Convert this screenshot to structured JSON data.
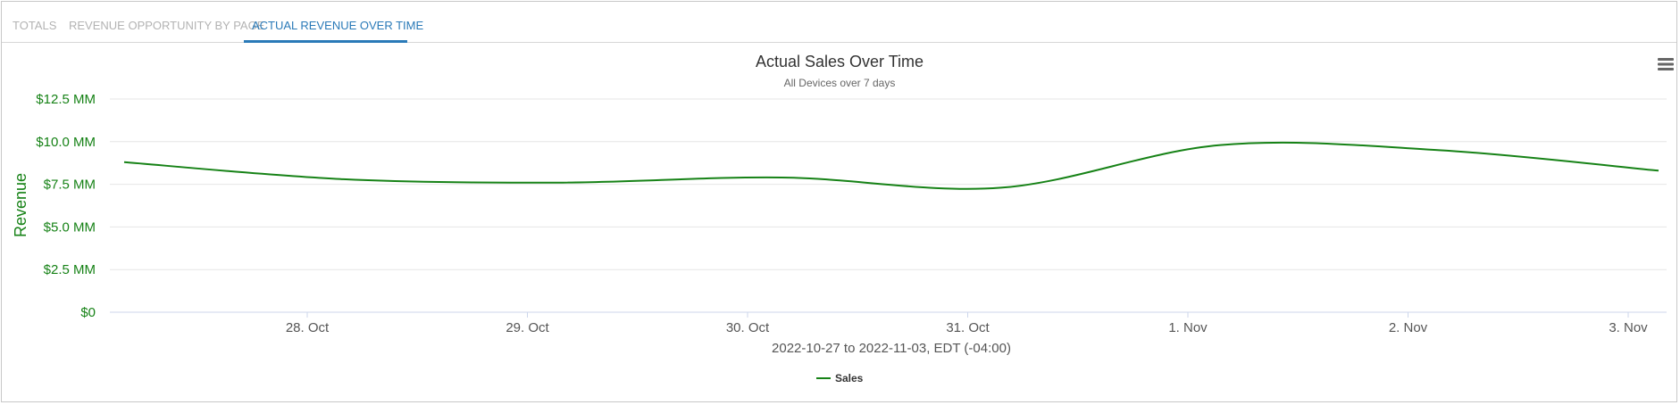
{
  "tabs": [
    {
      "label": "TOTALS",
      "active": false
    },
    {
      "label": "REVENUE OPPORTUNITY BY PAGE",
      "active": false
    },
    {
      "label": "ACTUAL REVENUE OVER TIME",
      "active": true
    }
  ],
  "menu_icon": "hamburger-menu-icon",
  "colors": {
    "series": "#168216",
    "axis_text": "#168216",
    "tab_active": "#2a7ab8",
    "tab_inactive": "#b3b3b3",
    "grid": "#e6e6e6"
  },
  "chart_data": {
    "type": "line",
    "title": "Actual Sales Over Time",
    "subtitle": "All Devices over 7 days",
    "xlabel": "2022-10-27 to 2022-11-03, EDT (-04:00)",
    "ylabel": "Revenue",
    "x_ticks": [
      "28. Oct",
      "29. Oct",
      "30. Oct",
      "31. Oct",
      "1. Nov",
      "2. Nov",
      "3. Nov"
    ],
    "y_ticks": [
      "$0",
      "$2.5 MM",
      "$5.0 MM",
      "$7.5 MM",
      "$10.0 MM",
      "$12.5 MM"
    ],
    "ylim": [
      0,
      12.5
    ],
    "grid": true,
    "legend_position": "bottom-center",
    "series": [
      {
        "name": "Sales",
        "x": [
          "2022-10-27",
          "2022-10-28",
          "2022-10-29",
          "2022-10-30",
          "2022-10-31",
          "2022-11-01",
          "2022-11-02",
          "2022-11-03"
        ],
        "values": [
          8.8,
          7.8,
          7.6,
          7.9,
          7.3,
          9.8,
          9.5,
          8.3
        ]
      }
    ]
  }
}
